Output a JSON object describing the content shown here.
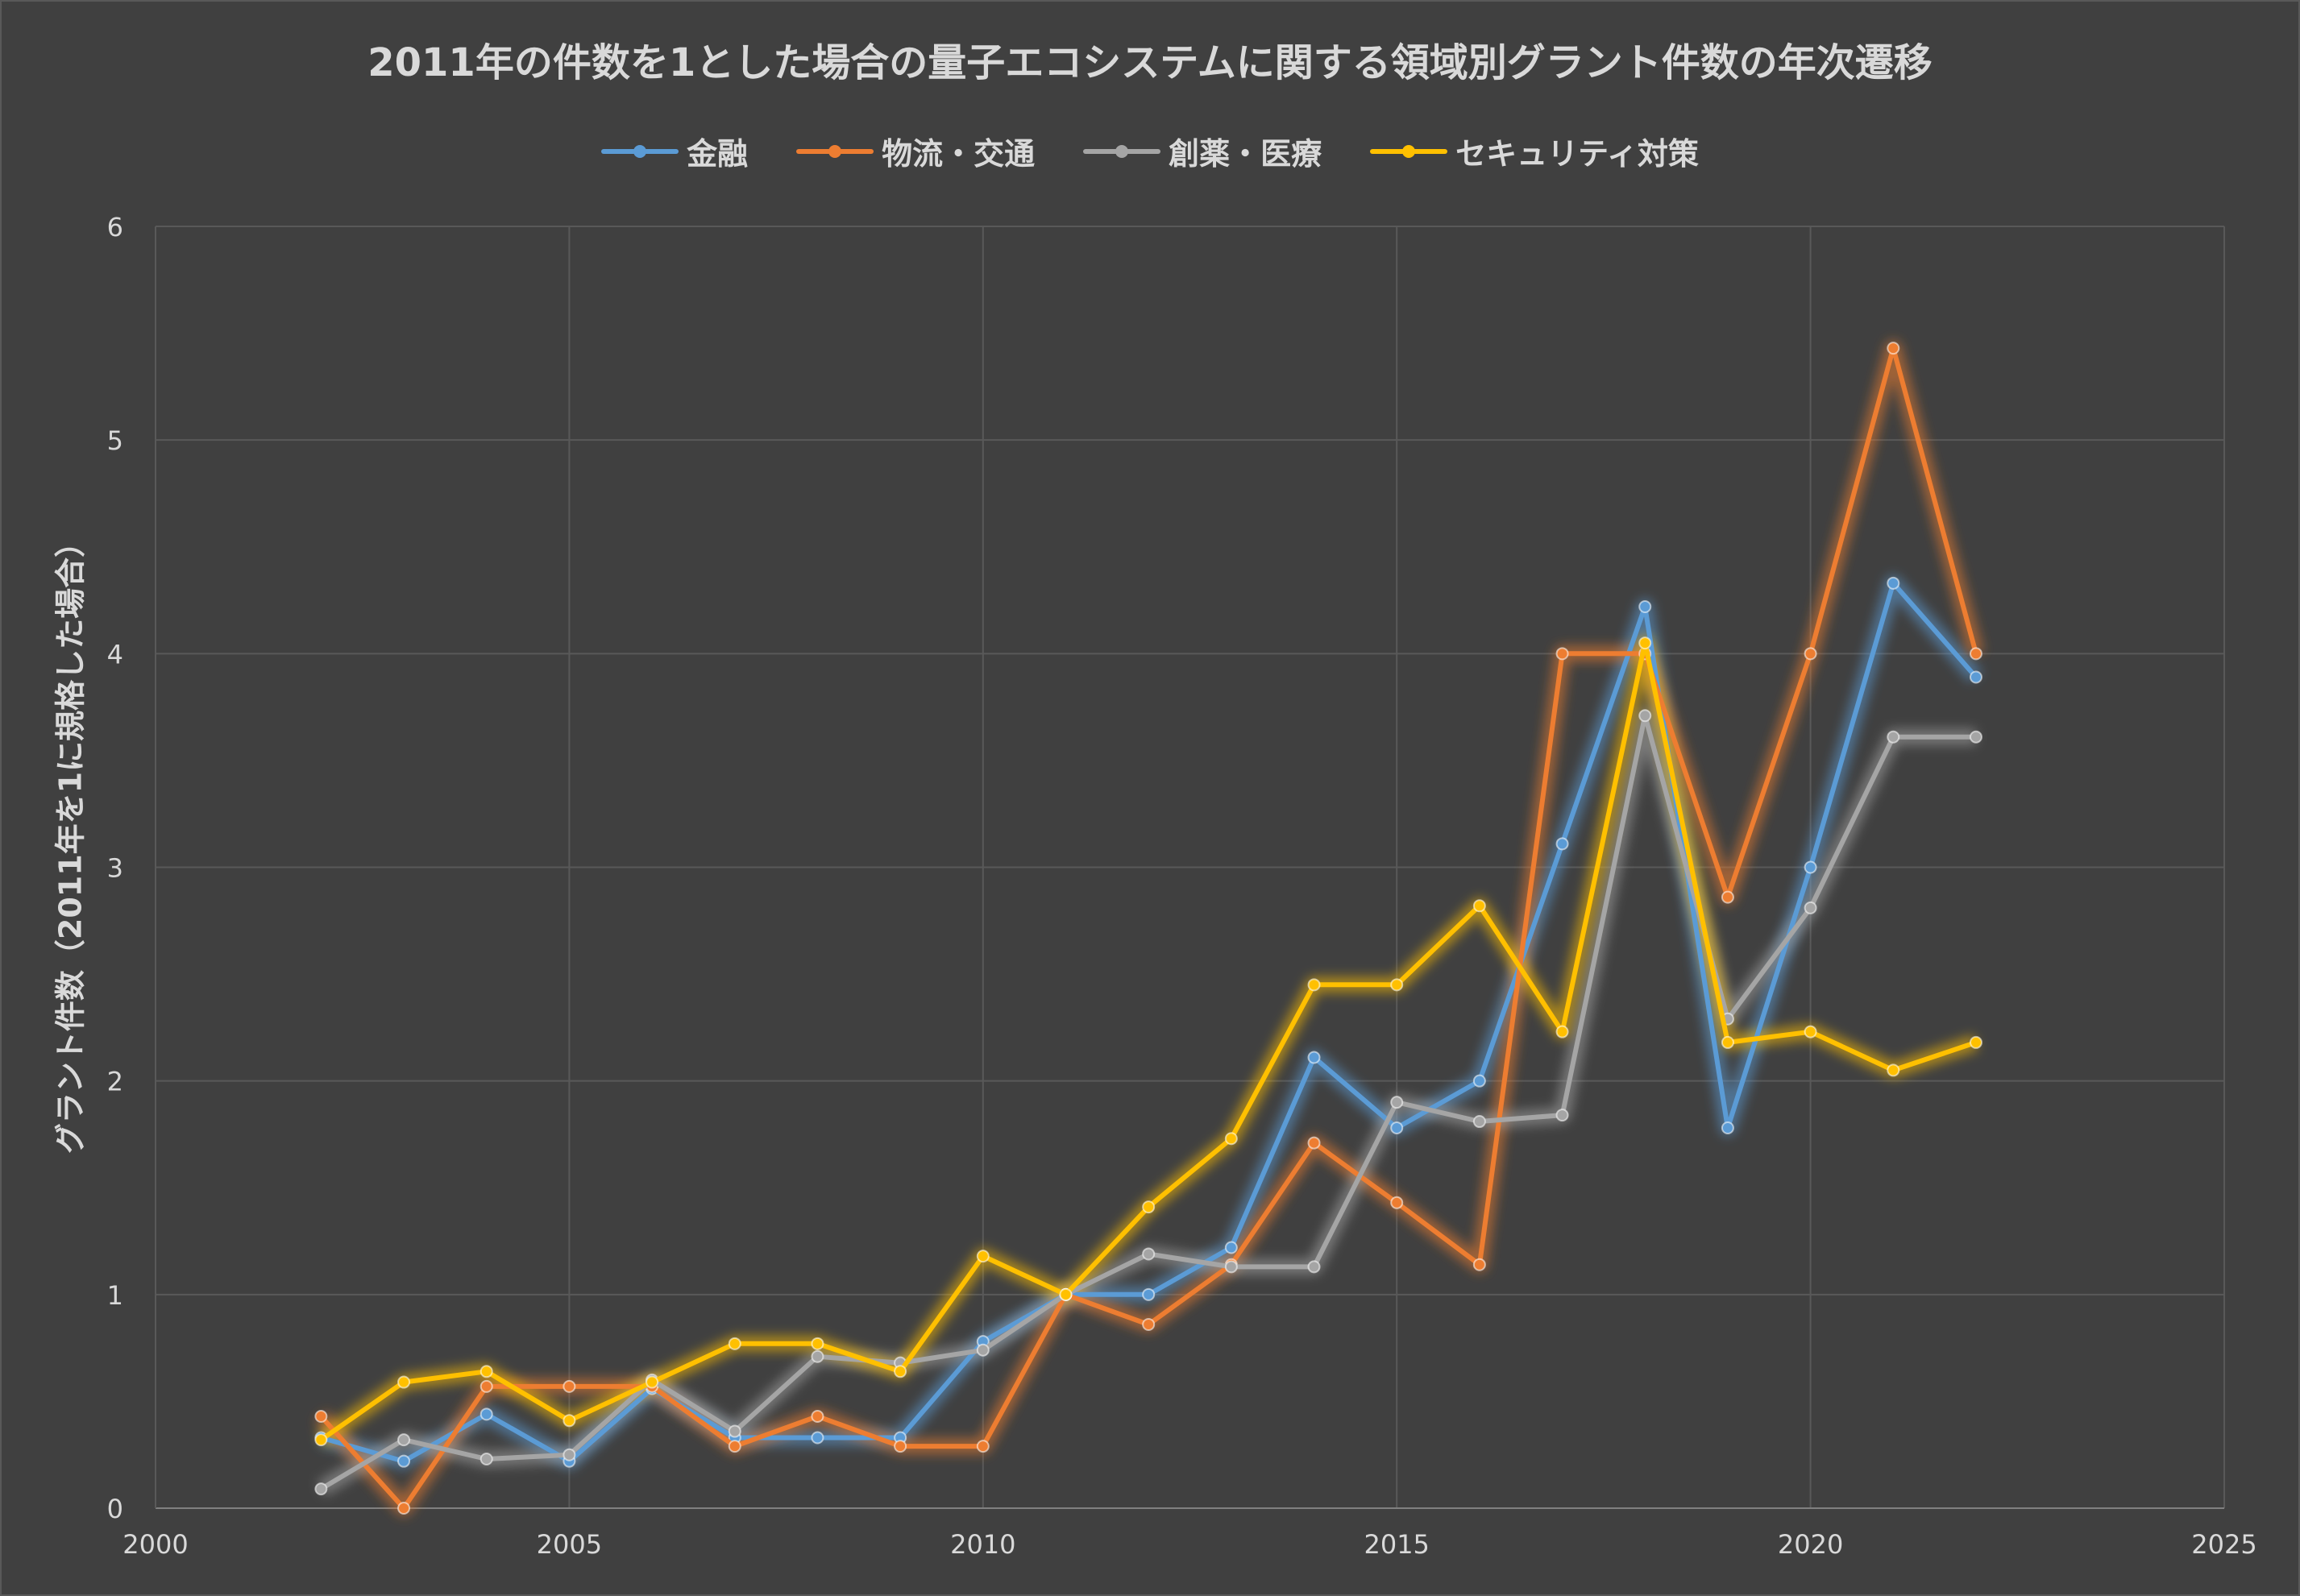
{
  "chart_data": {
    "type": "line",
    "title": "2011年の件数を1とした場合の量子エコシステムに関する領域別グラント件数の年次遷移",
    "xlabel": "",
    "ylabel": "グラント件数（2011年を1に規格した場合）",
    "xlim": [
      2000,
      2025
    ],
    "ylim": [
      0,
      6
    ],
    "x_ticks": [
      "2000",
      "2005",
      "2010",
      "2015",
      "2020",
      "2025"
    ],
    "y_ticks": [
      "0",
      "1",
      "2",
      "3",
      "4",
      "5",
      "6"
    ],
    "grid": true,
    "legend_position": "top",
    "x": [
      2002,
      2003,
      2004,
      2005,
      2006,
      2007,
      2008,
      2009,
      2010,
      2011,
      2012,
      2013,
      2014,
      2015,
      2016,
      2017,
      2018,
      2019,
      2020,
      2021,
      2022
    ],
    "series": [
      {
        "name": "金融",
        "color": "#5b9bd5",
        "values": [
          0.33,
          0.22,
          0.44,
          0.22,
          0.56,
          0.33,
          0.33,
          0.33,
          0.78,
          1.0,
          1.0,
          1.22,
          2.11,
          1.78,
          2.0,
          3.11,
          4.22,
          1.78,
          3.0,
          4.33,
          3.89
        ]
      },
      {
        "name": "物流・交通",
        "color": "#ed7d31",
        "values": [
          0.43,
          0.0,
          0.57,
          0.57,
          0.57,
          0.29,
          0.43,
          0.29,
          0.29,
          1.0,
          0.86,
          1.14,
          1.71,
          1.43,
          1.14,
          4.0,
          4.0,
          2.86,
          4.0,
          5.43,
          4.0
        ]
      },
      {
        "name": "創薬・医療",
        "color": "#a5a5a5",
        "values": [
          0.09,
          0.32,
          0.23,
          0.25,
          0.6,
          0.36,
          0.71,
          0.68,
          0.74,
          1.0,
          1.19,
          1.13,
          1.13,
          1.9,
          1.81,
          1.84,
          3.71,
          2.29,
          2.81,
          3.61,
          3.61
        ]
      },
      {
        "name": "セキュリティ対策",
        "color": "#ffc000",
        "values": [
          0.32,
          0.59,
          0.64,
          0.41,
          0.59,
          0.77,
          0.77,
          0.64,
          1.18,
          1.0,
          1.41,
          1.73,
          2.45,
          2.45,
          2.82,
          2.23,
          4.05,
          2.18,
          2.23,
          2.05,
          2.18
        ]
      }
    ]
  },
  "colors": {
    "background": "#404040",
    "grid": "#595959",
    "text": "#d9d9d9"
  }
}
